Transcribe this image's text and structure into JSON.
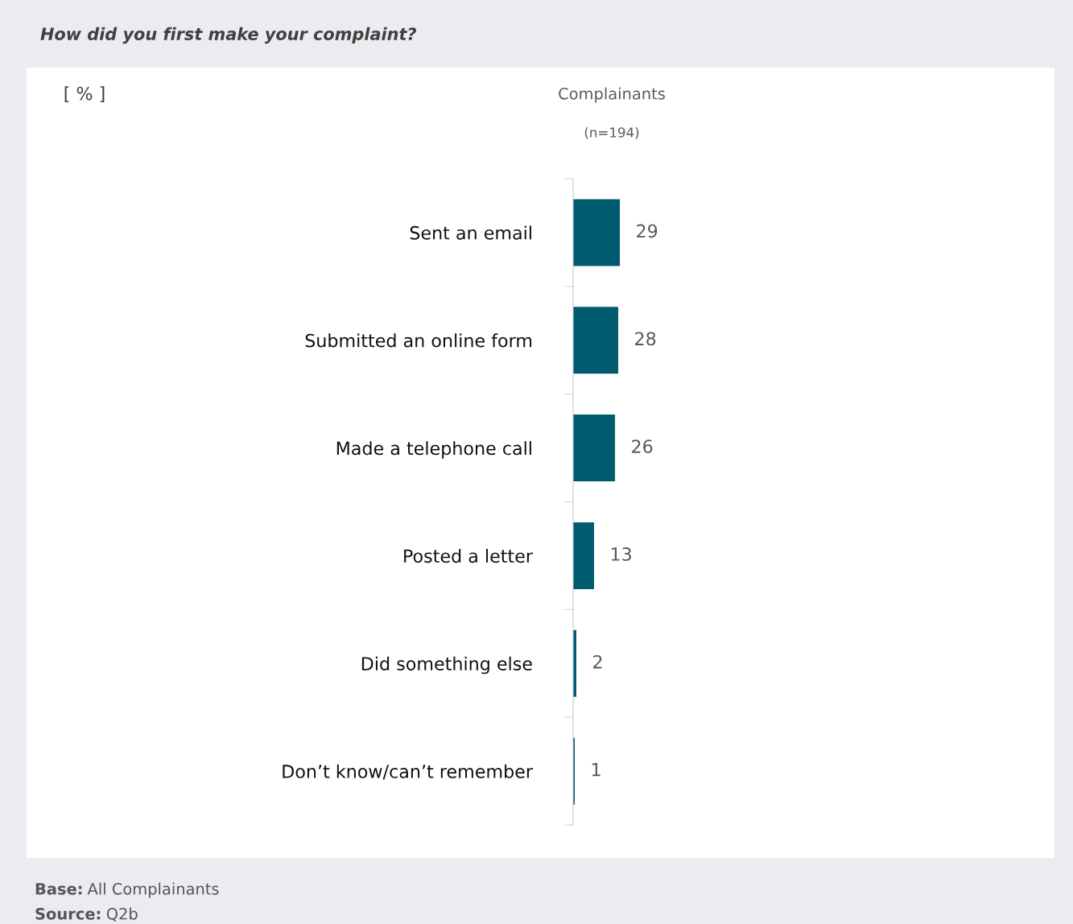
{
  "chart_data": {
    "type": "bar",
    "orientation": "horizontal",
    "title": "How did you first make your complaint?",
    "subtitle": "Complainants",
    "categories": [
      "Sent an email",
      "Submitted an online form",
      "Made a telephone call",
      "Posted a letter",
      "Did something else",
      "Don’t know/can’t remember"
    ],
    "series": [
      {
        "color": "#005b70",
        "values": [
          29,
          28,
          26,
          13,
          2,
          1
        ]
      }
    ],
    "data_labels": true,
    "legend": false,
    "grid": false,
    "annotations": [
      "[ % ]",
      "(n=194)",
      "Base: All Complainants",
      "Source: Q2b"
    ]
  }
}
